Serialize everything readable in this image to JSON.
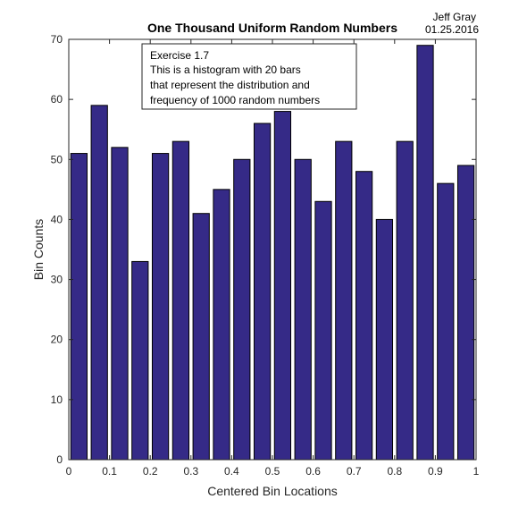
{
  "chart_data": {
    "type": "bar",
    "title": "One Thousand Uniform Random Numbers",
    "xlabel": "Centered Bin Locations",
    "ylabel": "Bin Counts",
    "xlim": [
      0,
      1
    ],
    "ylim": [
      0,
      70
    ],
    "xticks": [
      "0",
      "0.1",
      "0.2",
      "0.3",
      "0.4",
      "0.5",
      "0.6",
      "0.7",
      "0.8",
      "0.9",
      "1"
    ],
    "yticks": [
      "0",
      "10",
      "20",
      "30",
      "40",
      "50",
      "60",
      "70"
    ],
    "x": [
      0.025,
      0.075,
      0.125,
      0.175,
      0.225,
      0.275,
      0.325,
      0.375,
      0.425,
      0.475,
      0.525,
      0.575,
      0.625,
      0.675,
      0.725,
      0.775,
      0.825,
      0.875,
      0.925,
      0.975
    ],
    "values": [
      51,
      59,
      52,
      33,
      51,
      53,
      41,
      45,
      50,
      56,
      58,
      50,
      43,
      53,
      48,
      40,
      53,
      69,
      46,
      49
    ],
    "bar_color": "#352a87",
    "bar_edge_color": "#000000",
    "grid": false
  },
  "author": {
    "name": "Jeff Gray",
    "date": "01.25.2016"
  },
  "annotation": {
    "lines": [
      "Exercise 1.7",
      "This is a histogram with 20 bars",
      "that represent the distribution and",
      "frequency of 1000 random numbers"
    ]
  }
}
